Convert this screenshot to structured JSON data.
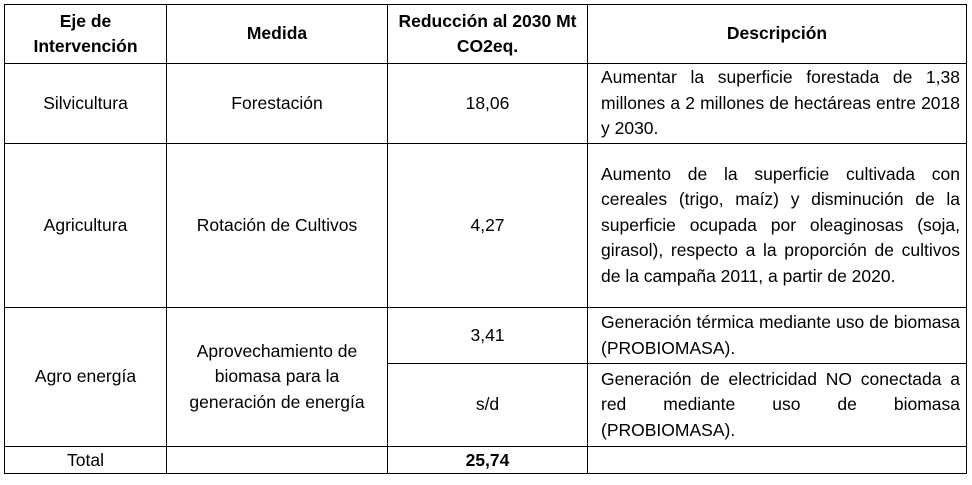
{
  "header": {
    "col1": "Eje de Intervención",
    "col2": "Medida",
    "col3": "Reducción al 2030 Mt CO2eq.",
    "col4": "Descripción"
  },
  "rows": [
    {
      "eje": "Silvicultura",
      "medida": "Forestación",
      "reduccion": "18,06",
      "descripcion": "Aumentar la superficie forestada de 1,38 millones a 2 millones de hectáreas entre 2018 y 2030."
    },
    {
      "eje": "Agricultura",
      "medida": "Rotación de Cultivos",
      "reduccion": "4,27",
      "descripcion": "Aumento de la superficie cultivada con cereales (trigo, maíz) y disminución de la superficie ocupada por oleaginosas (soja, girasol), respecto a la proporción de cultivos de la campaña 2011, a partir de 2020."
    },
    {
      "eje": "Agro energía",
      "medida": "Aprovechamiento de biomasa para la generación de energía",
      "reduccion": "3,41",
      "descripcion": "Generación térmica mediante uso de biomasa (PROBIOMASA)."
    },
    {
      "reduccion": "s/d",
      "descripcion": "Generación de electricidad NO conectada a red mediante uso de biomasa (PROBIOMASA)."
    }
  ],
  "total": {
    "label": "Total",
    "value": "25,74"
  }
}
